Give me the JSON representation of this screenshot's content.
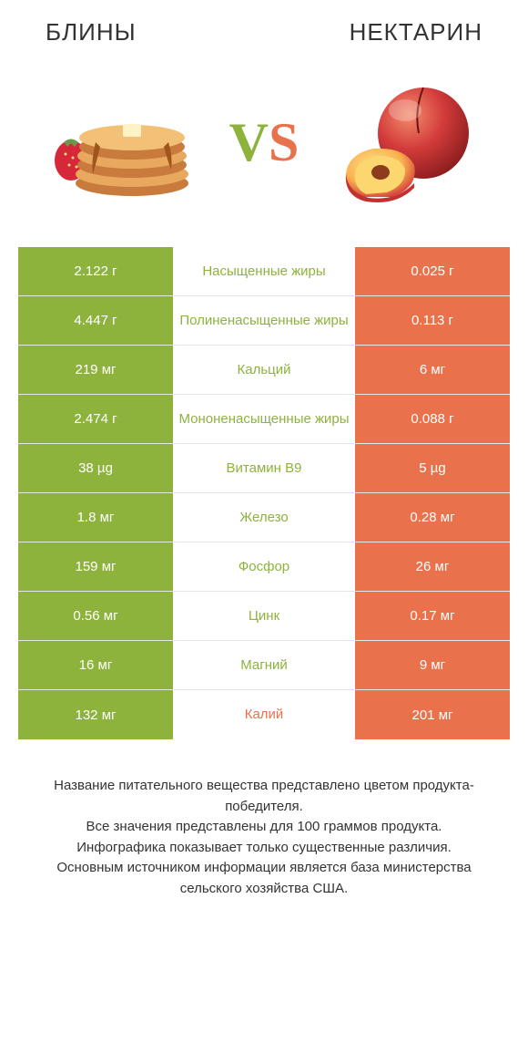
{
  "colors": {
    "left": "#8db33c",
    "right": "#e9724c",
    "mid_left": "#8db33c",
    "mid_right": "#e9724c",
    "vs_left": "#8db33c",
    "vs_right": "#e9724c"
  },
  "left_title": "БЛИНЫ",
  "right_title": "НЕКТАРИН",
  "vs": "VS",
  "rows": [
    {
      "left": "2.122 г",
      "mid": "Насыщенные жиры",
      "right": "0.025 г",
      "winner": "left"
    },
    {
      "left": "4.447 г",
      "mid": "Полиненасыщенные жиры",
      "right": "0.113 г",
      "winner": "left"
    },
    {
      "left": "219 мг",
      "mid": "Кальций",
      "right": "6 мг",
      "winner": "left"
    },
    {
      "left": "2.474 г",
      "mid": "Мононенасыщенные жиры",
      "right": "0.088 г",
      "winner": "left"
    },
    {
      "left": "38 µg",
      "mid": "Витамин B9",
      "right": "5 µg",
      "winner": "left"
    },
    {
      "left": "1.8 мг",
      "mid": "Железо",
      "right": "0.28 мг",
      "winner": "left"
    },
    {
      "left": "159 мг",
      "mid": "Фосфор",
      "right": "26 мг",
      "winner": "left"
    },
    {
      "left": "0.56 мг",
      "mid": "Цинк",
      "right": "0.17 мг",
      "winner": "left"
    },
    {
      "left": "16 мг",
      "mid": "Магний",
      "right": "9 мг",
      "winner": "left"
    },
    {
      "left": "132 мг",
      "mid": "Калий",
      "right": "201 мг",
      "winner": "right"
    }
  ],
  "disclaimer": "Название питательного вещества представлено цветом продукта-победителя.\nВсе значения представлены для 100 граммов продукта.\nИнфографика показывает только существенные различия.\nОсновным источником информации является база министерства сельского хозяйства США."
}
